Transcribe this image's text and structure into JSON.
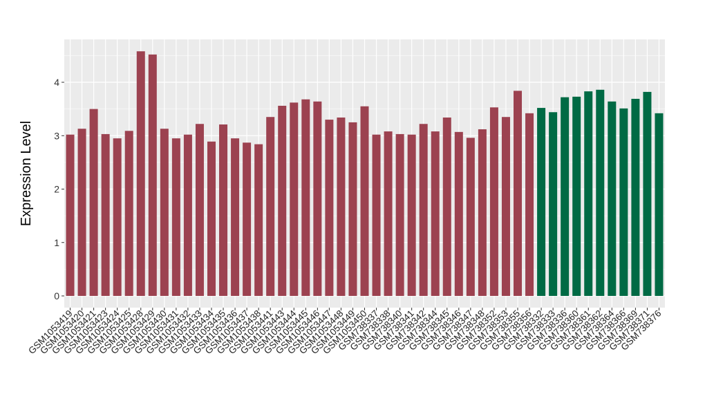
{
  "chart_data": {
    "type": "bar",
    "title": "",
    "xlabel": "",
    "ylabel": "Expression Level",
    "ylim": [
      -0.2,
      4.75
    ],
    "yticks": [
      0,
      1,
      2,
      3,
      4
    ],
    "grid": true,
    "legend": "none",
    "colors": {
      "group1": "#9C4250",
      "group2": "#006A44",
      "panel": "#EBEBEB",
      "grid": "#FFFFFF"
    },
    "categories": [
      "GSM1053419",
      "GSM1053420",
      "GSM1053421",
      "GSM1053423",
      "GSM1053424",
      "GSM1053425",
      "GSM1053428",
      "GSM1053429",
      "GSM1053430",
      "GSM1053431",
      "GSM1053432",
      "GSM1053433",
      "GSM1053434",
      "GSM1053435",
      "GSM1053436",
      "GSM1053437",
      "GSM1053438",
      "GSM1053441",
      "GSM1053443",
      "GSM1053444",
      "GSM1053445",
      "GSM1053446",
      "GSM1053447",
      "GSM1053448",
      "GSM1053449",
      "GSM1053450",
      "GSM738337",
      "GSM738338",
      "GSM738340",
      "GSM738341",
      "GSM738342",
      "GSM738344",
      "GSM738345",
      "GSM738346",
      "GSM738347",
      "GSM738348",
      "GSM738352",
      "GSM738353",
      "GSM738355",
      "GSM738356",
      "GSM738332",
      "GSM738333",
      "GSM738336",
      "GSM738360",
      "GSM738361",
      "GSM738362",
      "GSM738364",
      "GSM738366",
      "GSM738369",
      "GSM738371",
      "GSM738376"
    ],
    "values": [
      3.02,
      3.13,
      3.5,
      3.03,
      2.95,
      3.09,
      4.58,
      4.52,
      3.13,
      2.95,
      3.02,
      3.22,
      2.89,
      3.21,
      2.95,
      2.87,
      2.84,
      3.35,
      3.56,
      3.62,
      3.68,
      3.64,
      3.3,
      3.34,
      3.25,
      3.55,
      3.02,
      3.08,
      3.03,
      3.02,
      3.22,
      3.08,
      3.34,
      3.07,
      2.96,
      3.12,
      3.53,
      3.35,
      3.84,
      3.42,
      3.52,
      3.44,
      3.72,
      3.73,
      3.83,
      3.86,
      3.64,
      3.51,
      3.69,
      3.82,
      3.42
    ],
    "groups": [
      "group1",
      "group1",
      "group1",
      "group1",
      "group1",
      "group1",
      "group1",
      "group1",
      "group1",
      "group1",
      "group1",
      "group1",
      "group1",
      "group1",
      "group1",
      "group1",
      "group1",
      "group1",
      "group1",
      "group1",
      "group1",
      "group1",
      "group1",
      "group1",
      "group1",
      "group1",
      "group1",
      "group1",
      "group1",
      "group1",
      "group1",
      "group1",
      "group1",
      "group1",
      "group1",
      "group1",
      "group1",
      "group1",
      "group1",
      "group1",
      "group2",
      "group2",
      "group2",
      "group2",
      "group2",
      "group2",
      "group2",
      "group2",
      "group2",
      "group2",
      "group2"
    ]
  }
}
